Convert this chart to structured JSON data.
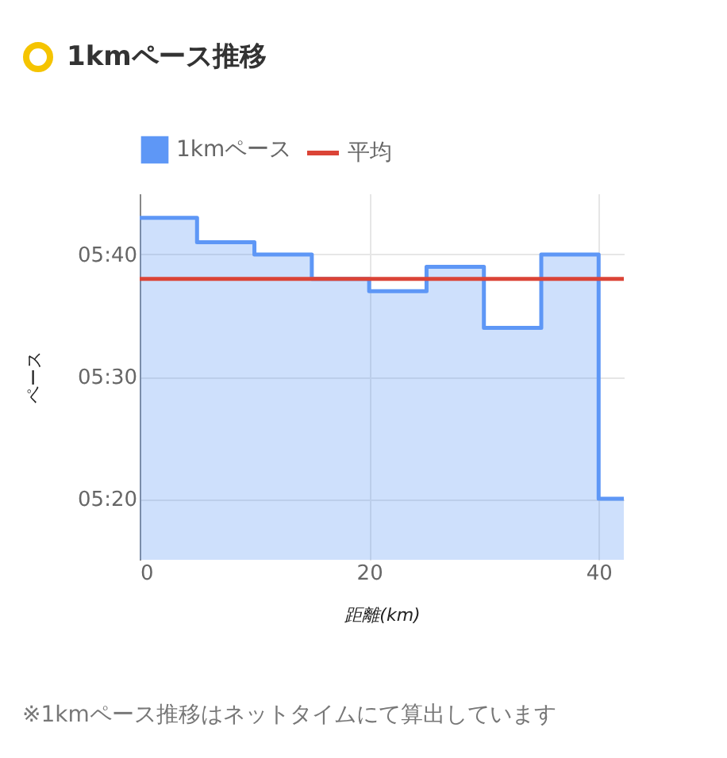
{
  "chart_data": {
    "type": "step",
    "title": "1kmペース推移",
    "xlabel": "距離(km)",
    "ylabel": "ペース",
    "x": [
      0,
      5,
      10,
      15,
      20,
      25,
      30,
      35,
      40,
      42.195
    ],
    "series": [
      {
        "name": "1kmペース",
        "color": "#5e97f6",
        "values": [
          343,
          341,
          340,
          338,
          337,
          339,
          334,
          340,
          320,
          320
        ]
      }
    ],
    "ref_lines": [
      {
        "axis": "y",
        "value": 338,
        "label": "平均",
        "color": "#db4437"
      }
    ],
    "xlim": [
      0,
      42.195
    ],
    "xticks": [
      0,
      20,
      40
    ],
    "ylim": [
      315,
      345
    ],
    "yticks": [
      {
        "value": 320,
        "label": "05:20"
      },
      {
        "value": 330,
        "label": "05:30"
      },
      {
        "value": 340,
        "label": "05:40"
      }
    ],
    "grid": true,
    "legend": "top",
    "annotations": [
      "※1kmペース推移はネットタイムにて算出しています"
    ]
  }
}
